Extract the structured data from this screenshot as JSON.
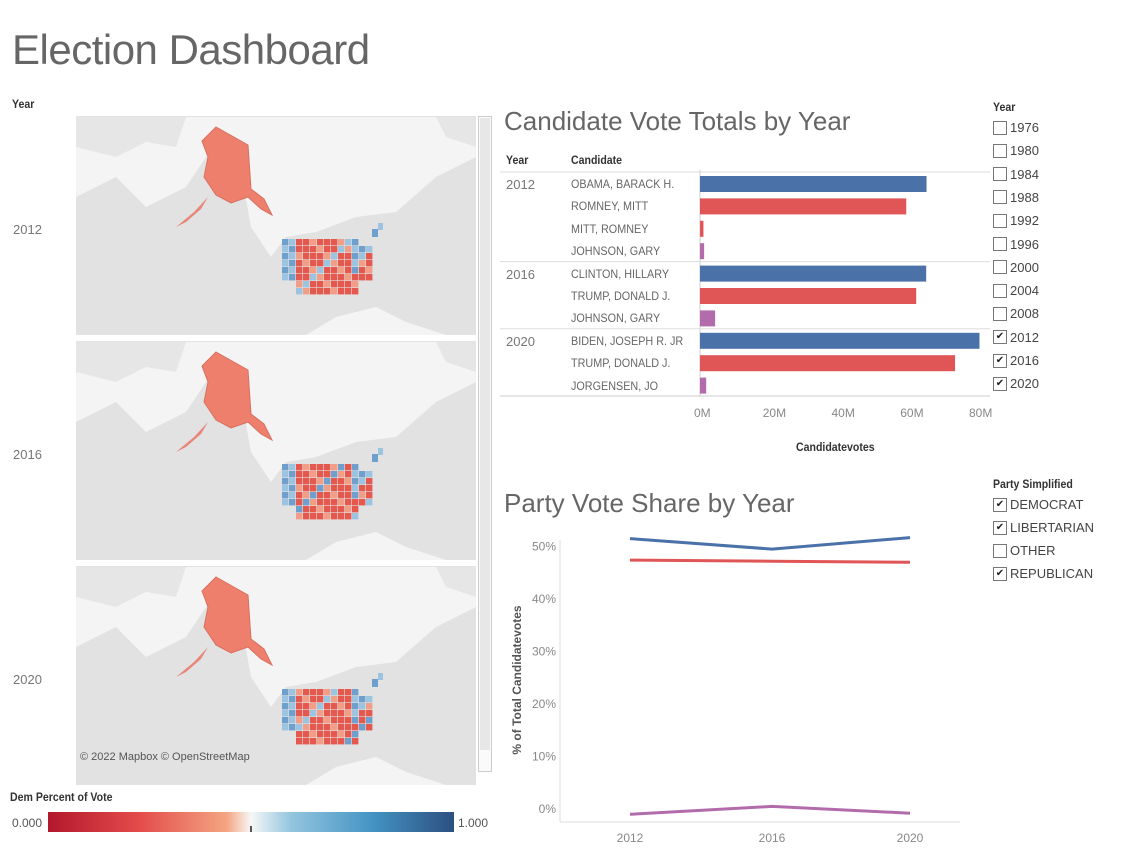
{
  "dashboard_title": "Election Dashboard",
  "map_section": {
    "header": "Year",
    "panels": [
      {
        "year": "2012"
      },
      {
        "year": "2016"
      },
      {
        "year": "2020"
      }
    ],
    "attribution": "© 2022 Mapbox © OpenStreetMap",
    "legend": {
      "title": "Dem Percent of Vote",
      "min_label": "0.000",
      "max_label": "1.000"
    }
  },
  "colors": {
    "democrat": "#4a72a8",
    "republican": "#e05555",
    "libertarian": "#b36cab",
    "map_bg": "#f4f4f4"
  },
  "vote_totals": {
    "title": "Candidate Vote Totals by Year",
    "col_year": "Year",
    "col_candidate": "Candidate",
    "axis_label": "Candidatevotes",
    "ticks": [
      "0M",
      "20M",
      "40M",
      "60M",
      "80M"
    ]
  },
  "vote_share": {
    "title": "Party Vote Share by Year",
    "ylabel": "% of Total Candidatevotes",
    "yticks": [
      "0%",
      "10%",
      "20%",
      "30%",
      "40%",
      "50%"
    ],
    "xticks": [
      "2012",
      "2016",
      "2020"
    ]
  },
  "year_filter": {
    "title": "Year",
    "options": [
      {
        "label": "1976",
        "checked": false
      },
      {
        "label": "1980",
        "checked": false
      },
      {
        "label": "1984",
        "checked": false
      },
      {
        "label": "1988",
        "checked": false
      },
      {
        "label": "1992",
        "checked": false
      },
      {
        "label": "1996",
        "checked": false
      },
      {
        "label": "2000",
        "checked": false
      },
      {
        "label": "2004",
        "checked": false
      },
      {
        "label": "2008",
        "checked": false
      },
      {
        "label": "2012",
        "checked": true
      },
      {
        "label": "2016",
        "checked": true
      },
      {
        "label": "2020",
        "checked": true
      }
    ]
  },
  "party_filter": {
    "title": "Party Simplified",
    "options": [
      {
        "label": "DEMOCRAT",
        "checked": true
      },
      {
        "label": "LIBERTARIAN",
        "checked": true
      },
      {
        "label": "OTHER",
        "checked": false
      },
      {
        "label": "REPUBLICAN",
        "checked": true
      }
    ]
  },
  "chart_data": [
    {
      "type": "bar",
      "title": "Candidate Vote Totals by Year",
      "xlabel": "Candidatevotes",
      "xlim": [
        0,
        80000000
      ],
      "groups": [
        {
          "year": "2012",
          "rows": [
            {
              "candidate": "OBAMA, BARACK H.",
              "party": "democrat",
              "value": 65900000
            },
            {
              "candidate": "ROMNEY, MITT",
              "party": "republican",
              "value": 60000000
            },
            {
              "candidate": "MITT, ROMNEY",
              "party": "republican",
              "value": 1000000
            },
            {
              "candidate": "JOHNSON, GARY",
              "party": "libertarian",
              "value": 1200000
            }
          ]
        },
        {
          "year": "2016",
          "rows": [
            {
              "candidate": "CLINTON, HILLARY",
              "party": "democrat",
              "value": 65800000
            },
            {
              "candidate": "TRUMP, DONALD J.",
              "party": "republican",
              "value": 62900000
            },
            {
              "candidate": "JOHNSON, GARY",
              "party": "libertarian",
              "value": 4400000
            }
          ]
        },
        {
          "year": "2020",
          "rows": [
            {
              "candidate": "BIDEN, JOSEPH R. JR",
              "party": "democrat",
              "value": 81300000
            },
            {
              "candidate": "TRUMP, DONALD J.",
              "party": "republican",
              "value": 74200000
            },
            {
              "candidate": "JORGENSEN, JO",
              "party": "libertarian",
              "value": 1800000
            }
          ]
        }
      ]
    },
    {
      "type": "line",
      "title": "Party Vote Share by Year",
      "ylabel": "% of Total Candidatevotes",
      "x": [
        "2012",
        "2016",
        "2020"
      ],
      "ylim": [
        0,
        0.52
      ],
      "series": [
        {
          "party": "democrat",
          "values": [
            0.515,
            0.495,
            0.517
          ]
        },
        {
          "party": "republican",
          "values": [
            0.474,
            0.472,
            0.47
          ]
        },
        {
          "party": "libertarian",
          "values": [
            -0.01,
            0.005,
            -0.008
          ]
        }
      ]
    }
  ]
}
